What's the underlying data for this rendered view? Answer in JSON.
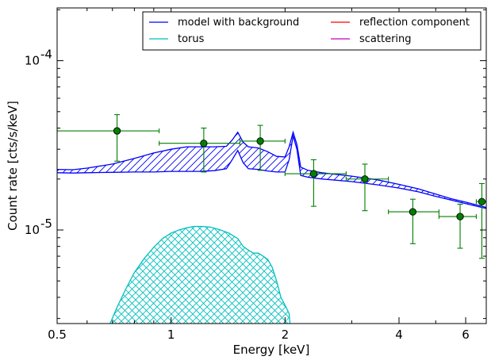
{
  "chart_data": {
    "type": "scatter",
    "xlabel": "Energy [keV]",
    "ylabel": "Count rate [cts/s/keV]",
    "xscale": "log",
    "yscale": "log",
    "xlim": [
      0.5,
      6.8
    ],
    "ylim": [
      2.8e-06,
      0.000205
    ],
    "grid": false,
    "legend_placement": "top-right",
    "legend_columns": 2,
    "x_ticks": [
      {
        "value": 0.5,
        "label": "0.5"
      },
      {
        "value": 1,
        "label": "1"
      },
      {
        "value": 2,
        "label": "2"
      },
      {
        "value": 4,
        "label": "4"
      },
      {
        "value": 6,
        "label": "6"
      }
    ],
    "y_ticks": [
      {
        "value": 1e-05,
        "base": "10",
        "exp": "-5"
      },
      {
        "value": 0.0001,
        "base": "10",
        "exp": "-4"
      }
    ],
    "legend": [
      {
        "label": "model with background",
        "color": "#0000ff"
      },
      {
        "label": "reflection component",
        "color": "#ff0000"
      },
      {
        "label": "torus",
        "color": "#00bfbf"
      },
      {
        "label": "scattering",
        "color": "#bf00bf"
      }
    ],
    "series": [
      {
        "name": "model with background",
        "kind": "band",
        "color": "#0000ff",
        "hatch": "diagonal",
        "x": [
          0.5,
          0.55,
          0.6,
          0.7,
          0.8,
          0.9,
          1.0,
          1.1,
          1.2,
          1.3,
          1.4,
          1.45,
          1.5,
          1.55,
          1.6,
          1.7,
          1.8,
          1.9,
          2.0,
          2.05,
          2.1,
          2.15,
          2.2,
          2.3,
          2.5,
          3.0,
          3.5,
          4.0,
          4.5,
          5.0,
          5.5,
          6.0,
          6.8
        ],
        "upper": [
          2.28e-05,
          2.27e-05,
          2.32e-05,
          2.45e-05,
          2.65e-05,
          2.85e-05,
          3e-05,
          3.1e-05,
          3.1e-05,
          3.1e-05,
          3.12e-05,
          3.4e-05,
          3.78e-05,
          3.3e-05,
          3.1e-05,
          3.05e-05,
          2.9e-05,
          2.72e-05,
          2.7e-05,
          3.1e-05,
          3.78e-05,
          3.2e-05,
          2.35e-05,
          2.25e-05,
          2.18e-05,
          2.08e-05,
          1.98e-05,
          1.86e-05,
          1.75e-05,
          1.63e-05,
          1.53e-05,
          1.46e-05,
          1.36e-05
        ],
        "lower": [
          2.18e-05,
          2.17e-05,
          2.18e-05,
          2.19e-05,
          2.2e-05,
          2.2e-05,
          2.22e-05,
          2.22e-05,
          2.22e-05,
          2.24e-05,
          2.3e-05,
          2.6e-05,
          2.95e-05,
          2.5e-05,
          2.3e-05,
          2.28e-05,
          2.23e-05,
          2.2e-05,
          2.2e-05,
          2.6e-05,
          3.6e-05,
          3e-05,
          2.1e-05,
          2.05e-05,
          2e-05,
          1.93e-05,
          1.85e-05,
          1.77e-05,
          1.68e-05,
          1.58e-05,
          1.5e-05,
          1.43e-05,
          1.34e-05
        ]
      },
      {
        "name": "torus",
        "kind": "band",
        "color": "#00bfbf",
        "hatch": "cross",
        "x": [
          0.69,
          0.72,
          0.76,
          0.8,
          0.85,
          0.9,
          0.95,
          1.0,
          1.05,
          1.1,
          1.15,
          1.2,
          1.27,
          1.35,
          1.42,
          1.5,
          1.55,
          1.6,
          1.65,
          1.7,
          1.75,
          1.8,
          1.85,
          1.9,
          1.95,
          2.0,
          2.05,
          2.06
        ],
        "upper": [
          2.8e-06,
          3.5e-06,
          4.5e-06,
          5.6e-06,
          6.8e-06,
          7.9e-06,
          8.9e-06,
          9.6e-06,
          1e-05,
          1.03e-05,
          1.05e-05,
          1.05e-05,
          1.04e-05,
          1e-05,
          9.6e-06,
          8.9e-06,
          8e-06,
          7.6e-06,
          7.3e-06,
          7.3e-06,
          7e-06,
          6.7e-06,
          6e-06,
          5e-06,
          4e-06,
          3.6e-06,
          3.2e-06,
          2.8e-06
        ],
        "lower": []
      },
      {
        "name": "data",
        "kind": "errorbar",
        "color": "#007f00",
        "points": [
          {
            "x": 0.72,
            "xlo": 0.5,
            "xhi": 0.93,
            "y": 3.85e-05,
            "ylo": 2.55e-05,
            "yhi": 4.8e-05
          },
          {
            "x": 1.22,
            "xlo": 0.93,
            "xhi": 1.52,
            "y": 3.25e-05,
            "ylo": 2.2e-05,
            "yhi": 4e-05
          },
          {
            "x": 1.72,
            "xlo": 1.52,
            "xhi": 2.0,
            "y": 3.35e-05,
            "ylo": 2.25e-05,
            "yhi": 4.15e-05
          },
          {
            "x": 2.38,
            "xlo": 2.0,
            "xhi": 2.9,
            "y": 2.15e-05,
            "ylo": 1.38e-05,
            "yhi": 2.6e-05
          },
          {
            "x": 3.25,
            "xlo": 2.9,
            "xhi": 3.75,
            "y": 2e-05,
            "ylo": 1.3e-05,
            "yhi": 2.45e-05
          },
          {
            "x": 4.35,
            "xlo": 3.75,
            "xhi": 5.1,
            "y": 1.28e-05,
            "ylo": 8.3e-06,
            "yhi": 1.52e-05
          },
          {
            "x": 5.8,
            "xlo": 5.1,
            "xhi": 6.4,
            "y": 1.2e-05,
            "ylo": 7.8e-06,
            "yhi": 1.42e-05
          },
          {
            "x": 6.62,
            "xlo": 6.4,
            "xhi": 6.8,
            "y": 1.47e-05,
            "ylo": 6.8e-06,
            "yhi": 1.88e-05
          }
        ]
      }
    ]
  }
}
